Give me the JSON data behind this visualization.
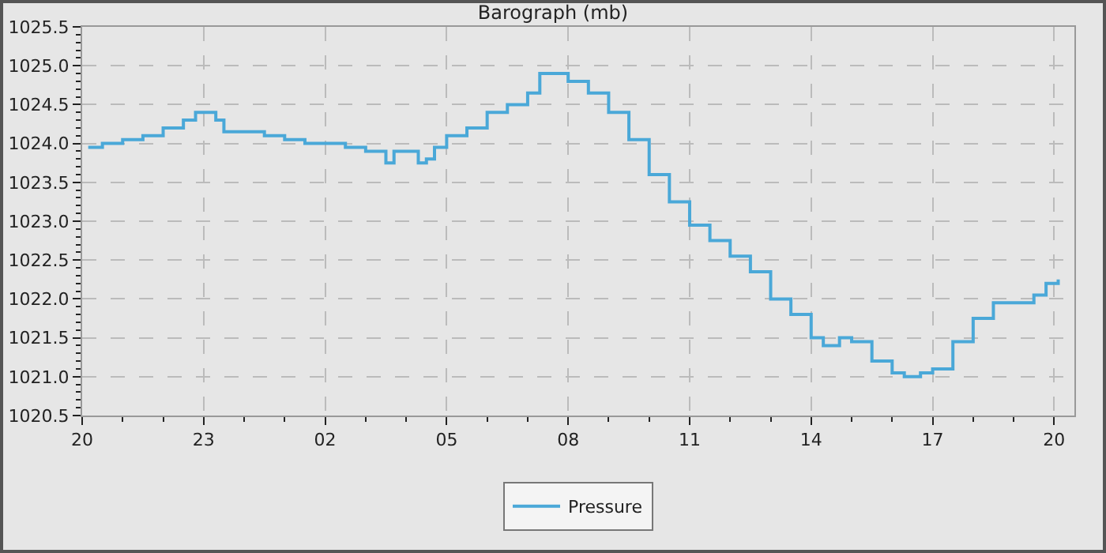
{
  "chart_data": {
    "type": "step",
    "title": "Barograph (mb)",
    "x": [
      "--01-01T20:09",
      "--01-01T20:30",
      "--01-01T21:00",
      "--01-01T21:30",
      "--01-01T22:00",
      "--01-01T22:30",
      "--01-01T22:48",
      "--01-01T23:00",
      "--01-01T23:18",
      "--01-01T23:30",
      "--01-02T00:00",
      "--01-02T00:30",
      "--01-02T01:00",
      "--01-02T01:30",
      "--01-02T02:00",
      "--01-02T02:30",
      "--01-02T03:00",
      "--01-02T03:18",
      "--01-02T03:30",
      "--01-02T03:42",
      "--01-02T04:00",
      "--01-02T04:18",
      "--01-02T04:30",
      "--01-02T04:42",
      "--01-02T05:00",
      "--01-02T05:30",
      "--01-02T06:00",
      "--01-02T06:30",
      "--01-02T07:00",
      "--01-02T07:18",
      "--01-02T07:42",
      "--01-02T08:00",
      "--01-02T08:30",
      "--01-02T09:00",
      "--01-02T09:30",
      "--01-02T10:00",
      "--01-02T10:30",
      "--01-02T11:00",
      "--01-02T11:30",
      "--01-02T12:00",
      "--01-02T12:30",
      "--01-02T13:00",
      "--01-02T13:30",
      "--01-02T14:00",
      "--01-02T14:18",
      "--01-02T14:42",
      "--01-02T15:00",
      "--01-02T15:30",
      "--01-02T16:00",
      "--01-02T16:18",
      "--01-02T16:42",
      "--01-02T17:00",
      "--01-02T17:30",
      "--01-02T18:00",
      "--01-02T18:30",
      "--01-02T19:00",
      "--01-02T19:30",
      "--01-02T19:48",
      "--01-02T20:06"
    ],
    "series": [
      {
        "name": "Pressure",
        "color": "#4aa8d8",
        "values": [
          1023.95,
          1024.0,
          1024.05,
          1024.1,
          1024.2,
          1024.3,
          1024.4,
          1024.4,
          1024.3,
          1024.15,
          1024.15,
          1024.1,
          1024.05,
          1024.0,
          1024.0,
          1023.95,
          1023.9,
          1023.9,
          1023.75,
          1023.9,
          1023.9,
          1023.75,
          1023.8,
          1023.95,
          1024.1,
          1024.2,
          1024.4,
          1024.5,
          1024.65,
          1024.9,
          1024.9,
          1024.8,
          1024.65,
          1024.4,
          1024.05,
          1023.6,
          1023.25,
          1022.95,
          1022.75,
          1022.55,
          1022.35,
          1022.0,
          1021.8,
          1021.5,
          1021.4,
          1021.5,
          1021.45,
          1021.2,
          1021.05,
          1021.0,
          1021.05,
          1021.1,
          1021.45,
          1021.75,
          1021.95,
          1021.95,
          1022.05,
          1022.2,
          1022.25
        ]
      }
    ],
    "xlim": [
      "--01-01T20:00",
      "--01-02T20:30"
    ],
    "xticks": [
      {
        "value": "--01-01T20:00",
        "label": "20"
      },
      {
        "value": "--01-01T21:00",
        "label": null
      },
      {
        "value": "--01-01T22:00",
        "label": null
      },
      {
        "value": "--01-01T23:00",
        "label": "23"
      },
      {
        "value": "--01-02T00:00",
        "label": null
      },
      {
        "value": "--01-02T01:00",
        "label": null
      },
      {
        "value": "--01-02T02:00",
        "label": "02"
      },
      {
        "value": "--01-02T03:00",
        "label": null
      },
      {
        "value": "--01-02T04:00",
        "label": null
      },
      {
        "value": "--01-02T05:00",
        "label": "05"
      },
      {
        "value": "--01-02T06:00",
        "label": null
      },
      {
        "value": "--01-02T07:00",
        "label": null
      },
      {
        "value": "--01-02T08:00",
        "label": "08"
      },
      {
        "value": "--01-02T09:00",
        "label": null
      },
      {
        "value": "--01-02T10:00",
        "label": null
      },
      {
        "value": "--01-02T11:00",
        "label": "11"
      },
      {
        "value": "--01-02T12:00",
        "label": null
      },
      {
        "value": "--01-02T13:00",
        "label": null
      },
      {
        "value": "--01-02T14:00",
        "label": "14"
      },
      {
        "value": "--01-02T15:00",
        "label": null
      },
      {
        "value": "--01-02T16:00",
        "label": null
      },
      {
        "value": "--01-02T17:00",
        "label": "17"
      },
      {
        "value": "--01-02T18:00",
        "label": null
      },
      {
        "value": "--01-02T19:00",
        "label": null
      },
      {
        "value": "--01-02T20:00",
        "label": "20"
      }
    ],
    "ylim": [
      1020.5,
      1025.5
    ],
    "yticks": [
      {
        "value": 1020.5,
        "label": "1020.5"
      },
      {
        "value": 1020.6,
        "label": null
      },
      {
        "value": 1020.7,
        "label": null
      },
      {
        "value": 1020.8,
        "label": null
      },
      {
        "value": 1020.9,
        "label": null
      },
      {
        "value": 1021,
        "label": "1021.0"
      },
      {
        "value": 1021.1,
        "label": null
      },
      {
        "value": 1021.2,
        "label": null
      },
      {
        "value": 1021.3,
        "label": null
      },
      {
        "value": 1021.4,
        "label": null
      },
      {
        "value": 1021.5,
        "label": "1021.5"
      },
      {
        "value": 1021.6,
        "label": null
      },
      {
        "value": 1021.7,
        "label": null
      },
      {
        "value": 1021.8,
        "label": null
      },
      {
        "value": 1021.9,
        "label": null
      },
      {
        "value": 1022,
        "label": "1022.0"
      },
      {
        "value": 1022.1,
        "label": null
      },
      {
        "value": 1022.2,
        "label": null
      },
      {
        "value": 1022.3,
        "label": null
      },
      {
        "value": 1022.4,
        "label": null
      },
      {
        "value": 1022.5,
        "label": "1022.5"
      },
      {
        "value": 1022.6,
        "label": null
      },
      {
        "value": 1022.7,
        "label": null
      },
      {
        "value": 1022.8,
        "label": null
      },
      {
        "value": 1022.9,
        "label": null
      },
      {
        "value": 1023,
        "label": "1023.0"
      },
      {
        "value": 1023.1,
        "label": null
      },
      {
        "value": 1023.2,
        "label": null
      },
      {
        "value": 1023.3,
        "label": null
      },
      {
        "value": 1023.4,
        "label": null
      },
      {
        "value": 1023.5,
        "label": "1023.5"
      },
      {
        "value": 1023.6,
        "label": null
      },
      {
        "value": 1023.7,
        "label": null
      },
      {
        "value": 1023.8,
        "label": null
      },
      {
        "value": 1023.9,
        "label": null
      },
      {
        "value": 1024,
        "label": "1024.0"
      },
      {
        "value": 1024.1,
        "label": null
      },
      {
        "value": 1024.2,
        "label": null
      },
      {
        "value": 1024.3,
        "label": null
      },
      {
        "value": 1024.4,
        "label": null
      },
      {
        "value": 1024.5,
        "label": "1024.5"
      },
      {
        "value": 1024.6,
        "label": null
      },
      {
        "value": 1024.7,
        "label": null
      },
      {
        "value": 1024.8,
        "label": null
      },
      {
        "value": 1024.9,
        "label": null
      },
      {
        "value": 1025,
        "label": "1025.0"
      },
      {
        "value": 1025.1,
        "label": null
      },
      {
        "value": 1025.2,
        "label": null
      },
      {
        "value": 1025.3,
        "label": null
      },
      {
        "value": 1025.4,
        "label": null
      },
      {
        "value": 1025.5,
        "label": "1025.5"
      }
    ],
    "grid": true,
    "legend": "bottom",
    "line_style": "solid",
    "marker": "none"
  }
}
